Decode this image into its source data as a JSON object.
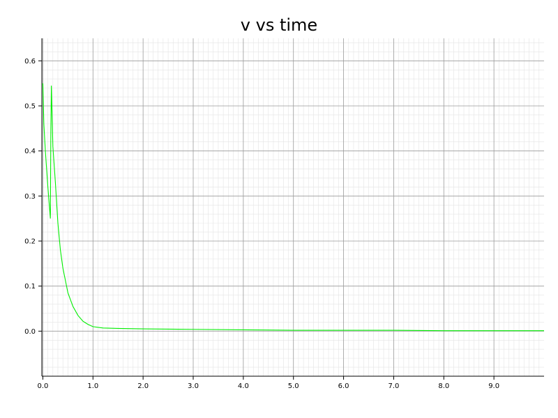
{
  "chart_data": {
    "type": "line",
    "title": "v vs time",
    "xlabel": "",
    "ylabel": "",
    "xlim": [
      -0.02,
      10.0
    ],
    "ylim": [
      -0.1,
      0.65
    ],
    "grid": true,
    "x_ticks": [
      0.0,
      1.0,
      2.0,
      3.0,
      4.0,
      5.0,
      6.0,
      7.0,
      8.0,
      9.0
    ],
    "x_tick_labels": [
      "0.0",
      "1.0",
      "2.0",
      "3.0",
      "4.0",
      "5.0",
      "6.0",
      "7.0",
      "8.0",
      "9.0"
    ],
    "y_ticks": [
      0.0,
      0.1,
      0.2,
      0.3,
      0.4,
      0.5,
      0.6
    ],
    "y_tick_labels": [
      "0.0",
      "0.1",
      "0.2",
      "0.3",
      "0.4",
      "0.5",
      "0.6"
    ],
    "series": [
      {
        "color": "#00ee00",
        "x": [
          0.0,
          0.02,
          0.05,
          0.1,
          0.15,
          0.16,
          0.17,
          0.2,
          0.25,
          0.3,
          0.35,
          0.4,
          0.5,
          0.6,
          0.7,
          0.8,
          0.9,
          1.0,
          1.2,
          1.5,
          2.0,
          3.0,
          4.0,
          5.0,
          6.0,
          7.0,
          8.0,
          9.0,
          10.0
        ],
        "y": [
          0.55,
          0.46,
          0.4,
          0.32,
          0.25,
          0.45,
          0.545,
          0.41,
          0.33,
          0.24,
          0.18,
          0.14,
          0.085,
          0.055,
          0.035,
          0.022,
          0.015,
          0.01,
          0.007,
          0.006,
          0.005,
          0.004,
          0.003,
          0.002,
          0.002,
          0.002,
          0.001,
          0.001,
          0.001
        ]
      }
    ]
  }
}
